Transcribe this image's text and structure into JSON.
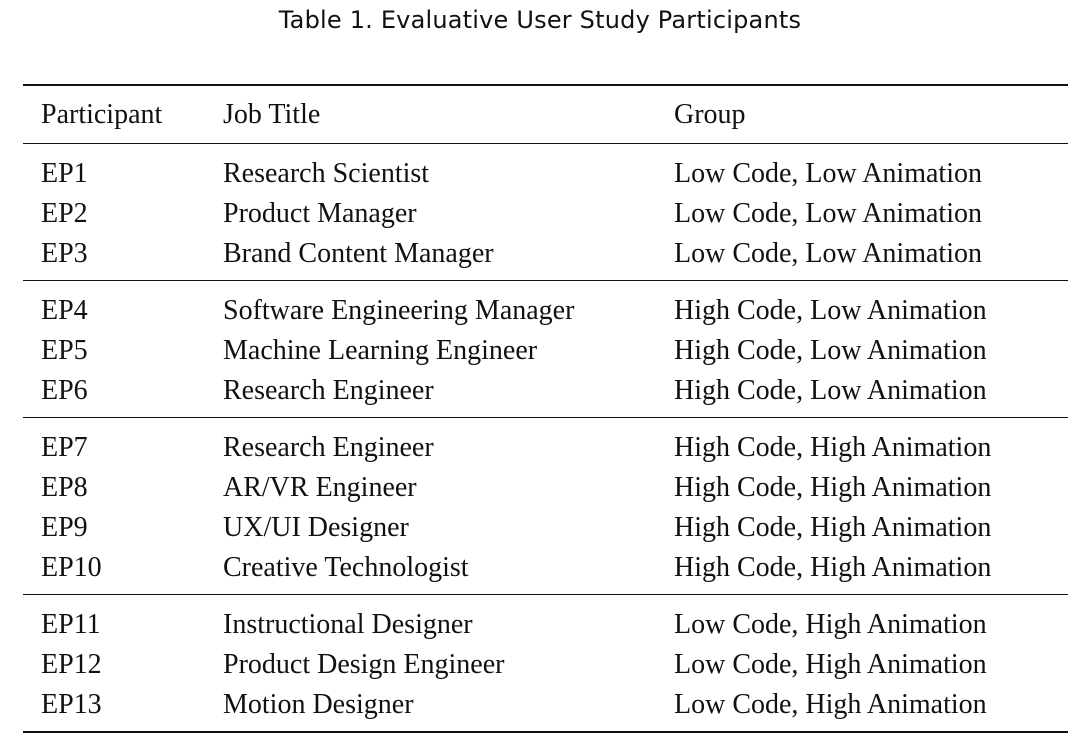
{
  "caption": "Table 1.  Evaluative User Study Participants",
  "table": {
    "headers": {
      "participant": "Participant",
      "job_title": "Job Title",
      "group": "Group"
    },
    "groups": [
      {
        "rows": [
          {
            "participant": "EP1",
            "job_title": "Research Scientist",
            "group": "Low Code, Low Animation"
          },
          {
            "participant": "EP2",
            "job_title": "Product Manager",
            "group": "Low Code, Low Animation"
          },
          {
            "participant": "EP3",
            "job_title": "Brand Content Manager",
            "group": "Low Code, Low Animation"
          }
        ]
      },
      {
        "rows": [
          {
            "participant": "EP4",
            "job_title": "Software Engineering Manager",
            "group": "High Code, Low Animation"
          },
          {
            "participant": "EP5",
            "job_title": "Machine Learning Engineer",
            "group": "High Code, Low Animation"
          },
          {
            "participant": "EP6",
            "job_title": "Research Engineer",
            "group": "High Code, Low Animation"
          }
        ]
      },
      {
        "rows": [
          {
            "participant": "EP7",
            "job_title": "Research Engineer",
            "group": "High Code, High Animation"
          },
          {
            "participant": "EP8",
            "job_title": "AR/VR Engineer",
            "group": "High Code, High Animation"
          },
          {
            "participant": "EP9",
            "job_title": "UX/UI Designer",
            "group": "High Code, High Animation"
          },
          {
            "participant": "EP10",
            "job_title": "Creative Technologist",
            "group": "High Code, High Animation"
          }
        ]
      },
      {
        "rows": [
          {
            "participant": "EP11",
            "job_title": "Instructional Designer",
            "group": "Low Code, High Animation"
          },
          {
            "participant": "EP12",
            "job_title": "Product Design Engineer",
            "group": "Low Code, High Animation"
          },
          {
            "participant": "EP13",
            "job_title": "Motion Designer",
            "group": "Low Code, High Animation"
          }
        ]
      }
    ]
  }
}
